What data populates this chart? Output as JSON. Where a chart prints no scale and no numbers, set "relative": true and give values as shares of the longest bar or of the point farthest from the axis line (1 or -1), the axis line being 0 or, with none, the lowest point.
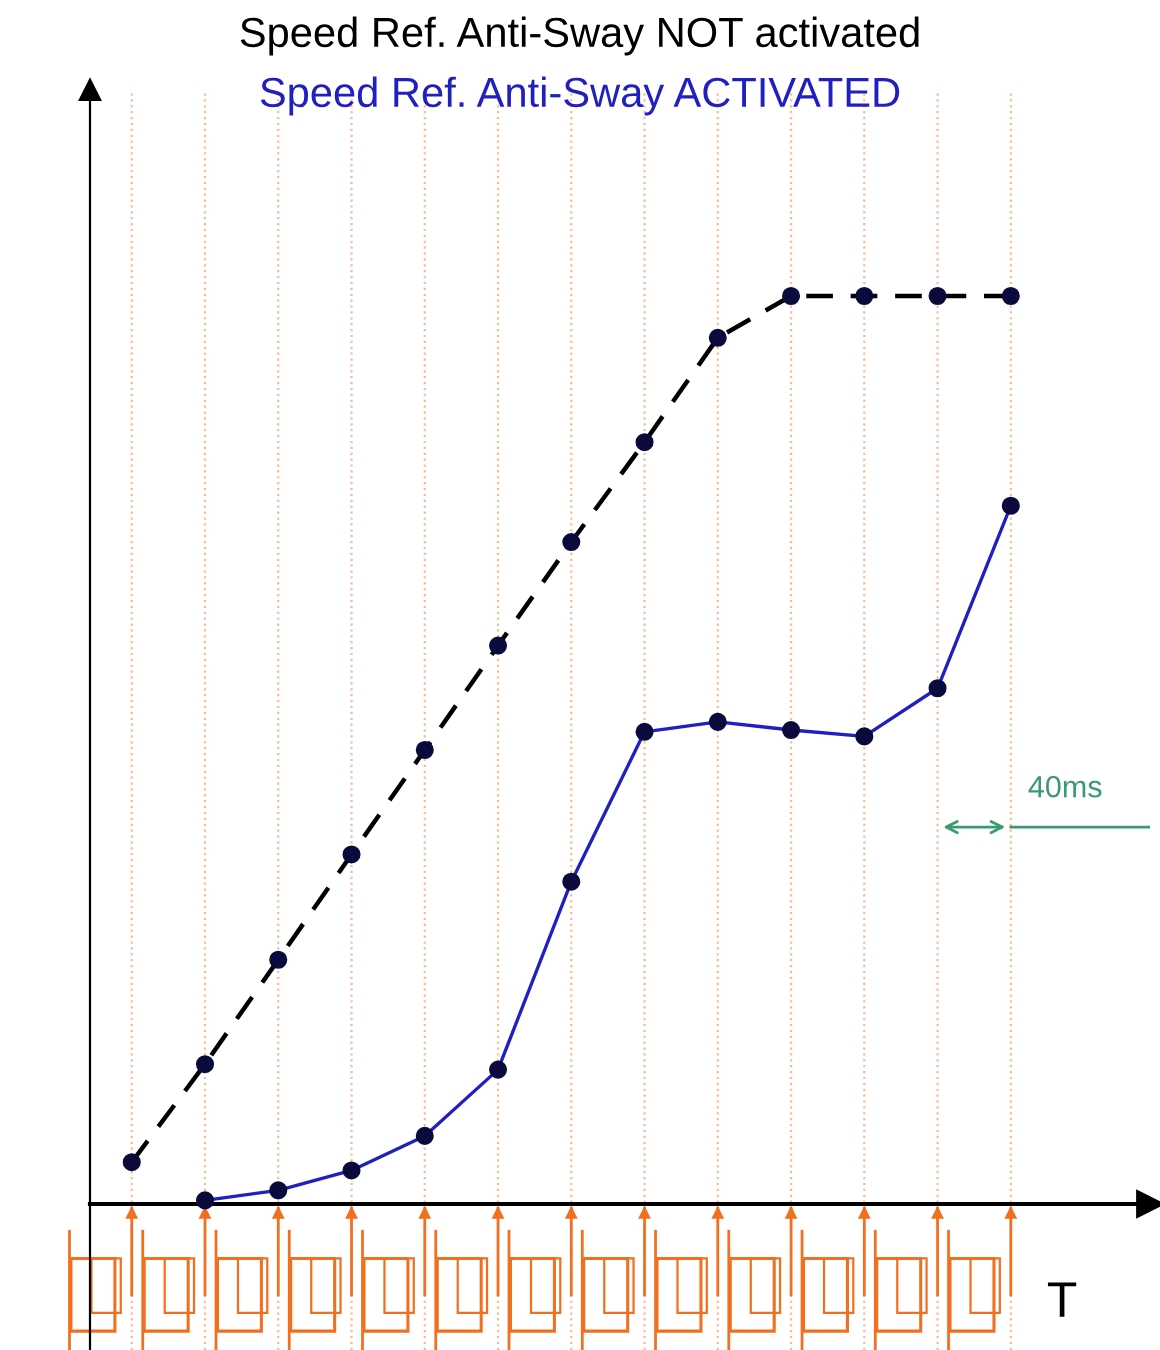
{
  "chart_data": {
    "type": "line",
    "relative": true,
    "xlabel": "T",
    "categories": [
      null,
      null,
      null,
      null,
      null,
      null,
      null,
      null,
      null,
      null,
      null,
      null,
      null
    ],
    "grid": "x",
    "marker": "circle",
    "series": [
      {
        "name": "Speed Ref. Anti-Sway NOT activated",
        "color": "#000000",
        "line_style": "dashed",
        "values": [
          0.046,
          0.154,
          0.269,
          0.385,
          0.5,
          0.615,
          0.729,
          0.839,
          0.954,
          1,
          1,
          1,
          1
        ]
      },
      {
        "name": "Speed Ref. Anti-Sway ACTIVATED",
        "color": "#2020c0",
        "line_style": "solid",
        "values": [
          null,
          0.004,
          0.015,
          0.037,
          0.075,
          0.148,
          0.355,
          0.52,
          0.531,
          0.522,
          0.515,
          0.568,
          0.769
        ]
      }
    ],
    "annotations": [
      "40ms"
    ]
  }
}
